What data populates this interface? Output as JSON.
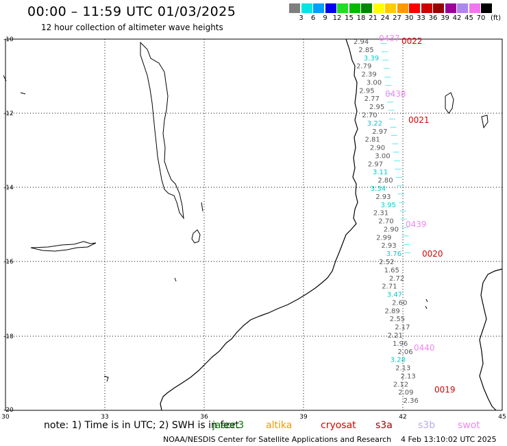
{
  "title": "00:00 – 11:59 UTC 01/03/2025",
  "subtitle": "12 hour collection of altimeter wave heights",
  "legend": {
    "colors": [
      "#7f7f7f",
      "#00e5e5",
      "#00a0ff",
      "#0000ee",
      "#22dd22",
      "#00bb00",
      "#008800",
      "#ffff00",
      "#ffcc00",
      "#ff9900",
      "#ff0000",
      "#cc0000",
      "#990000",
      "#990099",
      "#aa88ee",
      "#ee77ee",
      "#000000"
    ],
    "labels": [
      "3",
      "6",
      "9",
      "12",
      "15",
      "18",
      "21",
      "24",
      "27",
      "30",
      "33",
      "36",
      "39",
      "42",
      "45",
      "70"
    ],
    "unit": "(ft)"
  },
  "axes": {
    "lat_labels": [
      "-10",
      "-12",
      "-14",
      "-16",
      "-18",
      "-20"
    ],
    "lon_labels": [
      "30",
      "33",
      "36",
      "39",
      "42",
      "45"
    ]
  },
  "time_labels": [
    {
      "text": "0022",
      "color": "#dd0000"
    },
    {
      "text": "0021",
      "color": "#dd0000"
    },
    {
      "text": "0020",
      "color": "#dd0000"
    },
    {
      "text": "0019",
      "color": "#dd0000"
    },
    {
      "text": "0437",
      "color": "#ee88ee"
    },
    {
      "text": "0438",
      "color": "#ee88ee"
    },
    {
      "text": "0439",
      "color": "#ee88ee"
    },
    {
      "text": "0440",
      "color": "#ee88ee"
    }
  ],
  "wave_labels": [
    {
      "text": "2.94",
      "color": "#555555"
    },
    {
      "text": "2.85",
      "color": "#555555"
    },
    {
      "text": "3.39",
      "color": "#00cccc"
    },
    {
      "text": "2.79",
      "color": "#555555"
    },
    {
      "text": "2.39",
      "color": "#555555"
    },
    {
      "text": "3.00",
      "color": "#555555"
    },
    {
      "text": "2.95",
      "color": "#555555"
    },
    {
      "text": "2.77",
      "color": "#555555"
    },
    {
      "text": "2.95",
      "color": "#555555"
    },
    {
      "text": "2.70",
      "color": "#555555"
    },
    {
      "text": "3.22",
      "color": "#00cccc"
    },
    {
      "text": "2.97",
      "color": "#555555"
    },
    {
      "text": "2.81",
      "color": "#555555"
    },
    {
      "text": "2.90",
      "color": "#555555"
    },
    {
      "text": "3.00",
      "color": "#555555"
    },
    {
      "text": "2.97",
      "color": "#555555"
    },
    {
      "text": "3.11",
      "color": "#00cccc"
    },
    {
      "text": "2.80",
      "color": "#555555"
    },
    {
      "text": "3.34",
      "color": "#00cccc"
    },
    {
      "text": "2.93",
      "color": "#555555"
    },
    {
      "text": "3.95",
      "color": "#00cccc"
    },
    {
      "text": "2.31",
      "color": "#555555"
    },
    {
      "text": "2.70",
      "color": "#555555"
    },
    {
      "text": "2.90",
      "color": "#555555"
    },
    {
      "text": "2.99",
      "color": "#555555"
    },
    {
      "text": "2.93",
      "color": "#555555"
    },
    {
      "text": "3.76",
      "color": "#00cccc"
    },
    {
      "text": "2.52",
      "color": "#555555"
    },
    {
      "text": "1.65",
      "color": "#555555"
    },
    {
      "text": "2.72",
      "color": "#555555"
    },
    {
      "text": "2.71",
      "color": "#555555"
    },
    {
      "text": "3.47",
      "color": "#00cccc"
    },
    {
      "text": "2.60",
      "color": "#555555"
    },
    {
      "text": "2.89",
      "color": "#555555"
    },
    {
      "text": "2.55",
      "color": "#555555"
    },
    {
      "text": "2.17",
      "color": "#555555"
    },
    {
      "text": "2.21",
      "color": "#555555"
    },
    {
      "text": "1.96",
      "color": "#555555"
    },
    {
      "text": "2.06",
      "color": "#555555"
    },
    {
      "text": "3.28",
      "color": "#00cccc"
    },
    {
      "text": "2.13",
      "color": "#555555"
    },
    {
      "text": "2.13",
      "color": "#555555"
    },
    {
      "text": "2.12",
      "color": "#555555"
    },
    {
      "text": "2.09",
      "color": "#555555"
    },
    {
      "text": "2.36",
      "color": "#555555"
    }
  ],
  "note": "note: 1) Time is in UTC; 2) SWH is in feet",
  "satellites": [
    {
      "name": "jason3",
      "color": "#007700"
    },
    {
      "name": "altika",
      "color": "#ee9900"
    },
    {
      "name": "cryosat",
      "color": "#dd0000"
    },
    {
      "name": "s3a",
      "color": "#990000"
    },
    {
      "name": "s3b",
      "color": "#bbaaee"
    },
    {
      "name": "swot",
      "color": "#ee88ee"
    }
  ],
  "credit": "NOAA/NESDIS Center for Satellite Applications and Research",
  "timestamp": "4 Feb 13:10:02 UTC 2025"
}
